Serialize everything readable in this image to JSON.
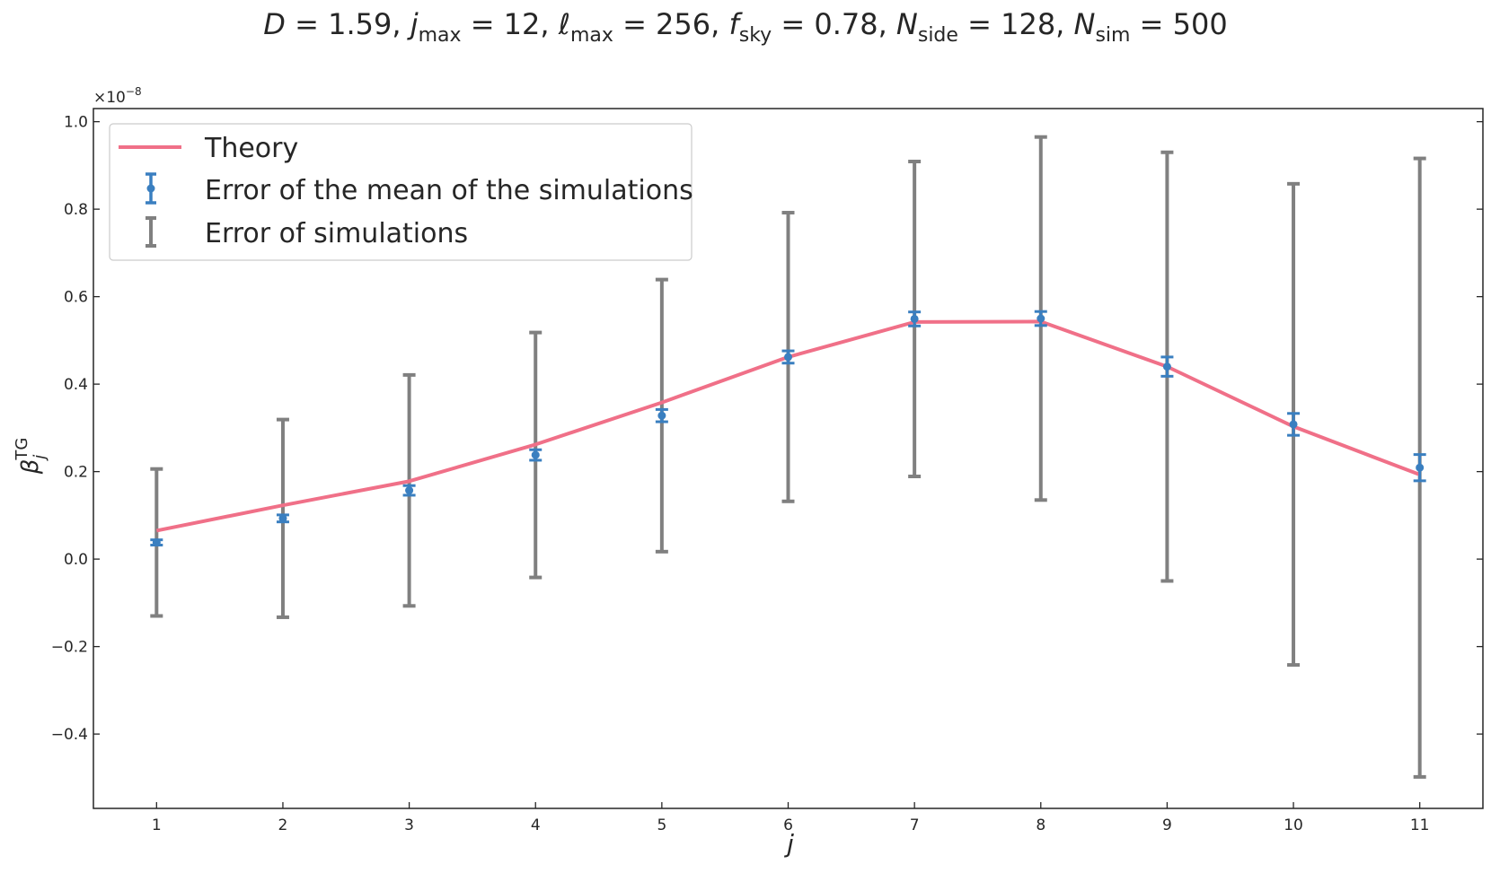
{
  "chart_data": {
    "type": "line",
    "title_parts": {
      "d_sym": "D",
      "d_val": " = 1.59,  ",
      "j_sym": "j",
      "j_sub": "max",
      "j_val": " = 12,  ",
      "l_sym": "ℓ",
      "l_sub": "max",
      "l_val": " = 256, ",
      "f_sym": "f",
      "f_sub": "sky",
      "f_val": " = 0.78,  ",
      "ns_sym": "N",
      "ns_sub": "side",
      "ns_val": " = 128, ",
      "nsim_sym": "N",
      "nsim_sub": "sim",
      "nsim_val": " = 500"
    },
    "xlabel": "j",
    "ylabel": {
      "symbol": "β",
      "subscript": "j",
      "superscript": "TG"
    },
    "y_offset_text": "×10",
    "y_offset_exponent": "−8",
    "xlim": [
      0.5,
      11.5
    ],
    "ylim": [
      -0.57,
      1.03
    ],
    "x_ticks": [
      1,
      2,
      3,
      4,
      5,
      6,
      7,
      8,
      9,
      10,
      11
    ],
    "y_ticks": [
      -0.4,
      -0.2,
      0.0,
      0.2,
      0.4,
      0.6,
      0.8,
      1.0
    ],
    "y_tick_labels": [
      "−0.4",
      "−0.2",
      "0.0",
      "0.2",
      "0.4",
      "0.6",
      "0.8",
      "1.0"
    ],
    "grid": false,
    "legend_position": "top-left",
    "colors": {
      "theory": "#f07088",
      "mean_error": "#3a7fc0",
      "sim_error": "#808080"
    },
    "series": [
      {
        "name": "Theory",
        "kind": "line",
        "x": [
          1,
          2,
          3,
          4,
          5,
          6,
          7,
          8,
          9,
          10,
          11
        ],
        "y": [
          0.065,
          0.123,
          0.178,
          0.262,
          0.358,
          0.462,
          0.542,
          0.543,
          0.44,
          0.303,
          0.193
        ]
      },
      {
        "name": "Error of the mean of the simulations",
        "kind": "errorbar",
        "x": [
          1,
          2,
          3,
          4,
          5,
          6,
          7,
          8,
          9,
          10,
          11
        ],
        "y": [
          0.038,
          0.093,
          0.157,
          0.238,
          0.328,
          0.462,
          0.549,
          0.55,
          0.44,
          0.308,
          0.209
        ],
        "yerr": [
          0.006,
          0.008,
          0.011,
          0.012,
          0.014,
          0.014,
          0.016,
          0.016,
          0.022,
          0.025,
          0.03
        ]
      },
      {
        "name": "Error of simulations",
        "kind": "errorbar",
        "x": [
          1,
          2,
          3,
          4,
          5,
          6,
          7,
          8,
          9,
          10,
          11
        ],
        "y": [
          0.038,
          0.093,
          0.157,
          0.238,
          0.328,
          0.462,
          0.549,
          0.55,
          0.44,
          0.308,
          0.209
        ],
        "yerr": [
          0.168,
          0.226,
          0.264,
          0.28,
          0.311,
          0.33,
          0.36,
          0.415,
          0.49,
          0.55,
          0.707
        ]
      }
    ]
  }
}
